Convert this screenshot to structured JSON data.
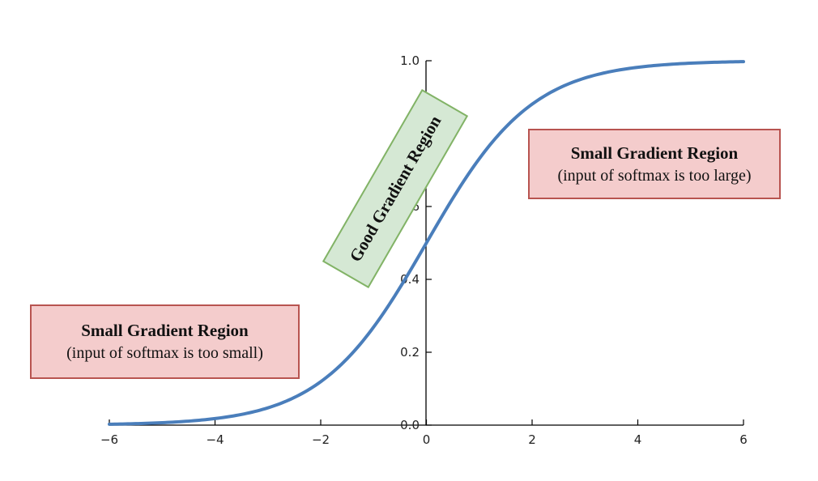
{
  "chart_data": {
    "type": "line",
    "function": "sigmoid",
    "x": [
      -6,
      -5,
      -4,
      -3,
      -2,
      -1,
      0,
      1,
      2,
      3,
      4,
      5,
      6
    ],
    "series": [
      {
        "values": [
          0.0025,
          0.0067,
          0.018,
          0.047,
          0.119,
          0.269,
          0.5,
          0.731,
          0.881,
          0.953,
          0.982,
          0.9933,
          0.9975
        ]
      }
    ],
    "xlim": [
      -6,
      6
    ],
    "ylim": [
      0,
      1.0
    ],
    "x_ticks": [
      "−6",
      "−4",
      "−2",
      "0",
      "2",
      "4",
      "6"
    ],
    "x_tick_values": [
      -6,
      -4,
      -2,
      0,
      2,
      4,
      6
    ],
    "y_ticks": [
      "0.0",
      "0.2",
      "0.4",
      "0.6",
      "0.8",
      "1.0"
    ],
    "y_tick_values": [
      0,
      0.2,
      0.4,
      0.6,
      0.8,
      1.0
    ],
    "line_color": "#4a7ebb",
    "grid": false,
    "annotations": {
      "left_title": "Small Gradient Region",
      "left_sub": "(input of softmax is too small)",
      "right_title": "Small Gradient Region",
      "right_sub": "(input of softmax is too large)",
      "middle": "Good Gradient Region"
    },
    "colors": {
      "red_fill": "#f4cccc",
      "red_border": "#b85450",
      "green_fill": "#d5e8d4",
      "green_border": "#82b366"
    }
  }
}
